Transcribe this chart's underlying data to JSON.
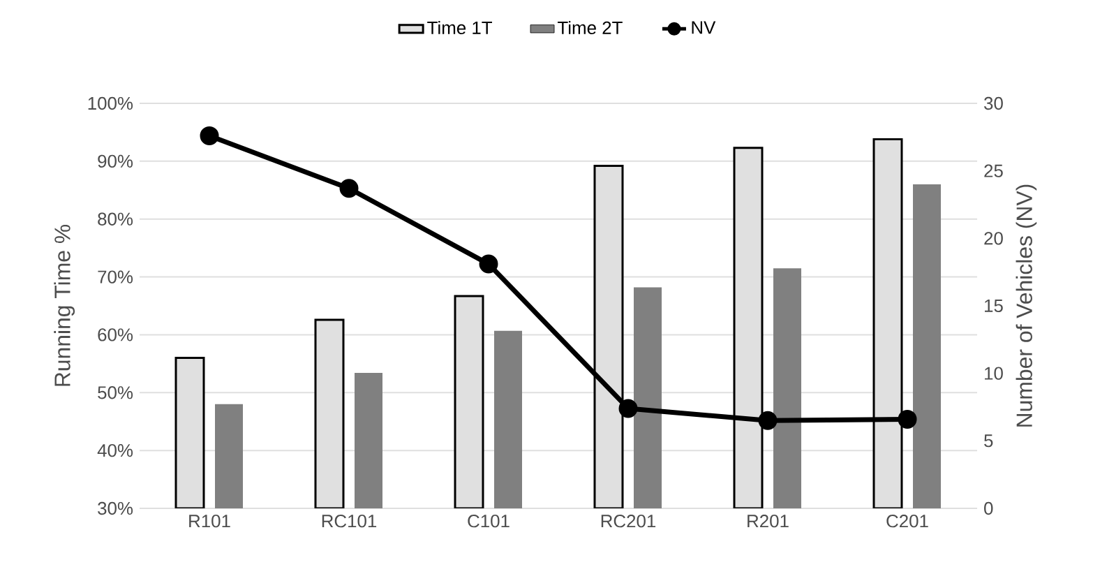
{
  "chart_data": {
    "type": "bar",
    "categories": [
      "R101",
      "RC101",
      "C101",
      "RC201",
      "R201",
      "C201"
    ],
    "series": [
      {
        "name": "Time 1T",
        "color": "#e0e0e0",
        "values": [
          56,
          62.6,
          66.7,
          89.2,
          92.3,
          93.8
        ]
      },
      {
        "name": "Time 2T",
        "color": "#808080",
        "values": [
          48,
          53.4,
          60.7,
          68.2,
          71.5,
          86
        ]
      },
      {
        "name": "NV",
        "type": "line",
        "axis": "y2",
        "color": "#000000",
        "marker": "circle",
        "values": [
          27.6,
          23.7,
          18.1,
          7.4,
          6.5,
          6.6
        ]
      }
    ],
    "ylabel": "Running Time %",
    "y2label": "Number of Vehicles (NV)",
    "ylim": [
      30,
      100
    ],
    "yticks": [
      {
        "value": 30,
        "label": "30%"
      },
      {
        "value": 40,
        "label": "40%"
      },
      {
        "value": 50,
        "label": "50%"
      },
      {
        "value": 60,
        "label": "60%"
      },
      {
        "value": 70,
        "label": "70%"
      },
      {
        "value": 80,
        "label": "80%"
      },
      {
        "value": 90,
        "label": "90%"
      },
      {
        "value": 100,
        "label": "100%"
      }
    ],
    "y2lim": [
      0,
      30
    ],
    "y2ticks": [
      0,
      5,
      10,
      15,
      20,
      25,
      30
    ],
    "grid": "y",
    "legend": "top"
  }
}
